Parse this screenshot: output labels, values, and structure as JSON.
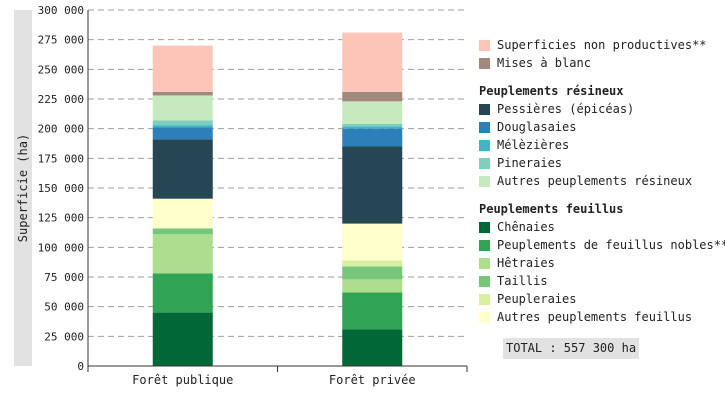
{
  "chart_data": {
    "type": "bar",
    "stacked": true,
    "ylabel": "Superficie (ha)",
    "ylim": [
      0,
      300000
    ],
    "yticks": [
      0,
      25000,
      50000,
      75000,
      100000,
      125000,
      150000,
      175000,
      200000,
      225000,
      250000,
      275000,
      300000
    ],
    "ytick_labels": [
      "0",
      "25 000",
      "50 000",
      "75 000",
      "100 000",
      "125 000",
      "150 000",
      "175 000",
      "200 000",
      "225 000",
      "250 000",
      "275 000",
      "300 000"
    ],
    "grid": true,
    "legend_position": "right",
    "categories": [
      "Forêt publique",
      "Forêt privée"
    ],
    "series": [
      {
        "name": "Chênaies",
        "group": "feuillus",
        "color": "#006837",
        "values": [
          45000,
          31000
        ]
      },
      {
        "name": "Peuplements de feuillus nobles**",
        "group": "feuillus",
        "color": "#31a354",
        "values": [
          33000,
          31000
        ]
      },
      {
        "name": "Hêtraies",
        "group": "feuillus",
        "color": "#addd8e",
        "values": [
          33000,
          11000
        ]
      },
      {
        "name": "Taillis",
        "group": "feuillus",
        "color": "#78c679",
        "values": [
          5000,
          11000
        ]
      },
      {
        "name": "Peupleraies",
        "group": "feuillus",
        "color": "#d9f0a3",
        "values": [
          0,
          5000
        ]
      },
      {
        "name": "Autres peuplements feuillus",
        "group": "feuillus",
        "color": "#ffffcc",
        "values": [
          25000,
          31000
        ]
      },
      {
        "name": "Pessières (épicéas)",
        "group": "resineux",
        "color": "#264653",
        "values": [
          50000,
          65000
        ]
      },
      {
        "name": "Douglasaies",
        "group": "resineux",
        "color": "#2c7fb8",
        "values": [
          10000,
          15000
        ]
      },
      {
        "name": "Mélèzières",
        "group": "resineux",
        "color": "#41b6c4",
        "values": [
          2000,
          2000
        ]
      },
      {
        "name": "Pineraies",
        "group": "resineux",
        "color": "#7fcdbb",
        "values": [
          4000,
          2000
        ]
      },
      {
        "name": "Autres peuplements résineux",
        "group": "resineux",
        "color": "#c7e9c0",
        "values": [
          21000,
          19000
        ]
      },
      {
        "name": "Mises à blanc",
        "group": "other",
        "color": "#a1887f",
        "values": [
          3000,
          8000
        ]
      },
      {
        "name": "Superficies non productives**",
        "group": "other",
        "color": "#fcc5b8",
        "values": [
          39000,
          50000
        ]
      }
    ],
    "legend_headers": {
      "resineux": "Peuplements résineux",
      "feuillus": "Peuplements feuillus"
    },
    "total_label": "TOTAL : 557 300 ha"
  }
}
